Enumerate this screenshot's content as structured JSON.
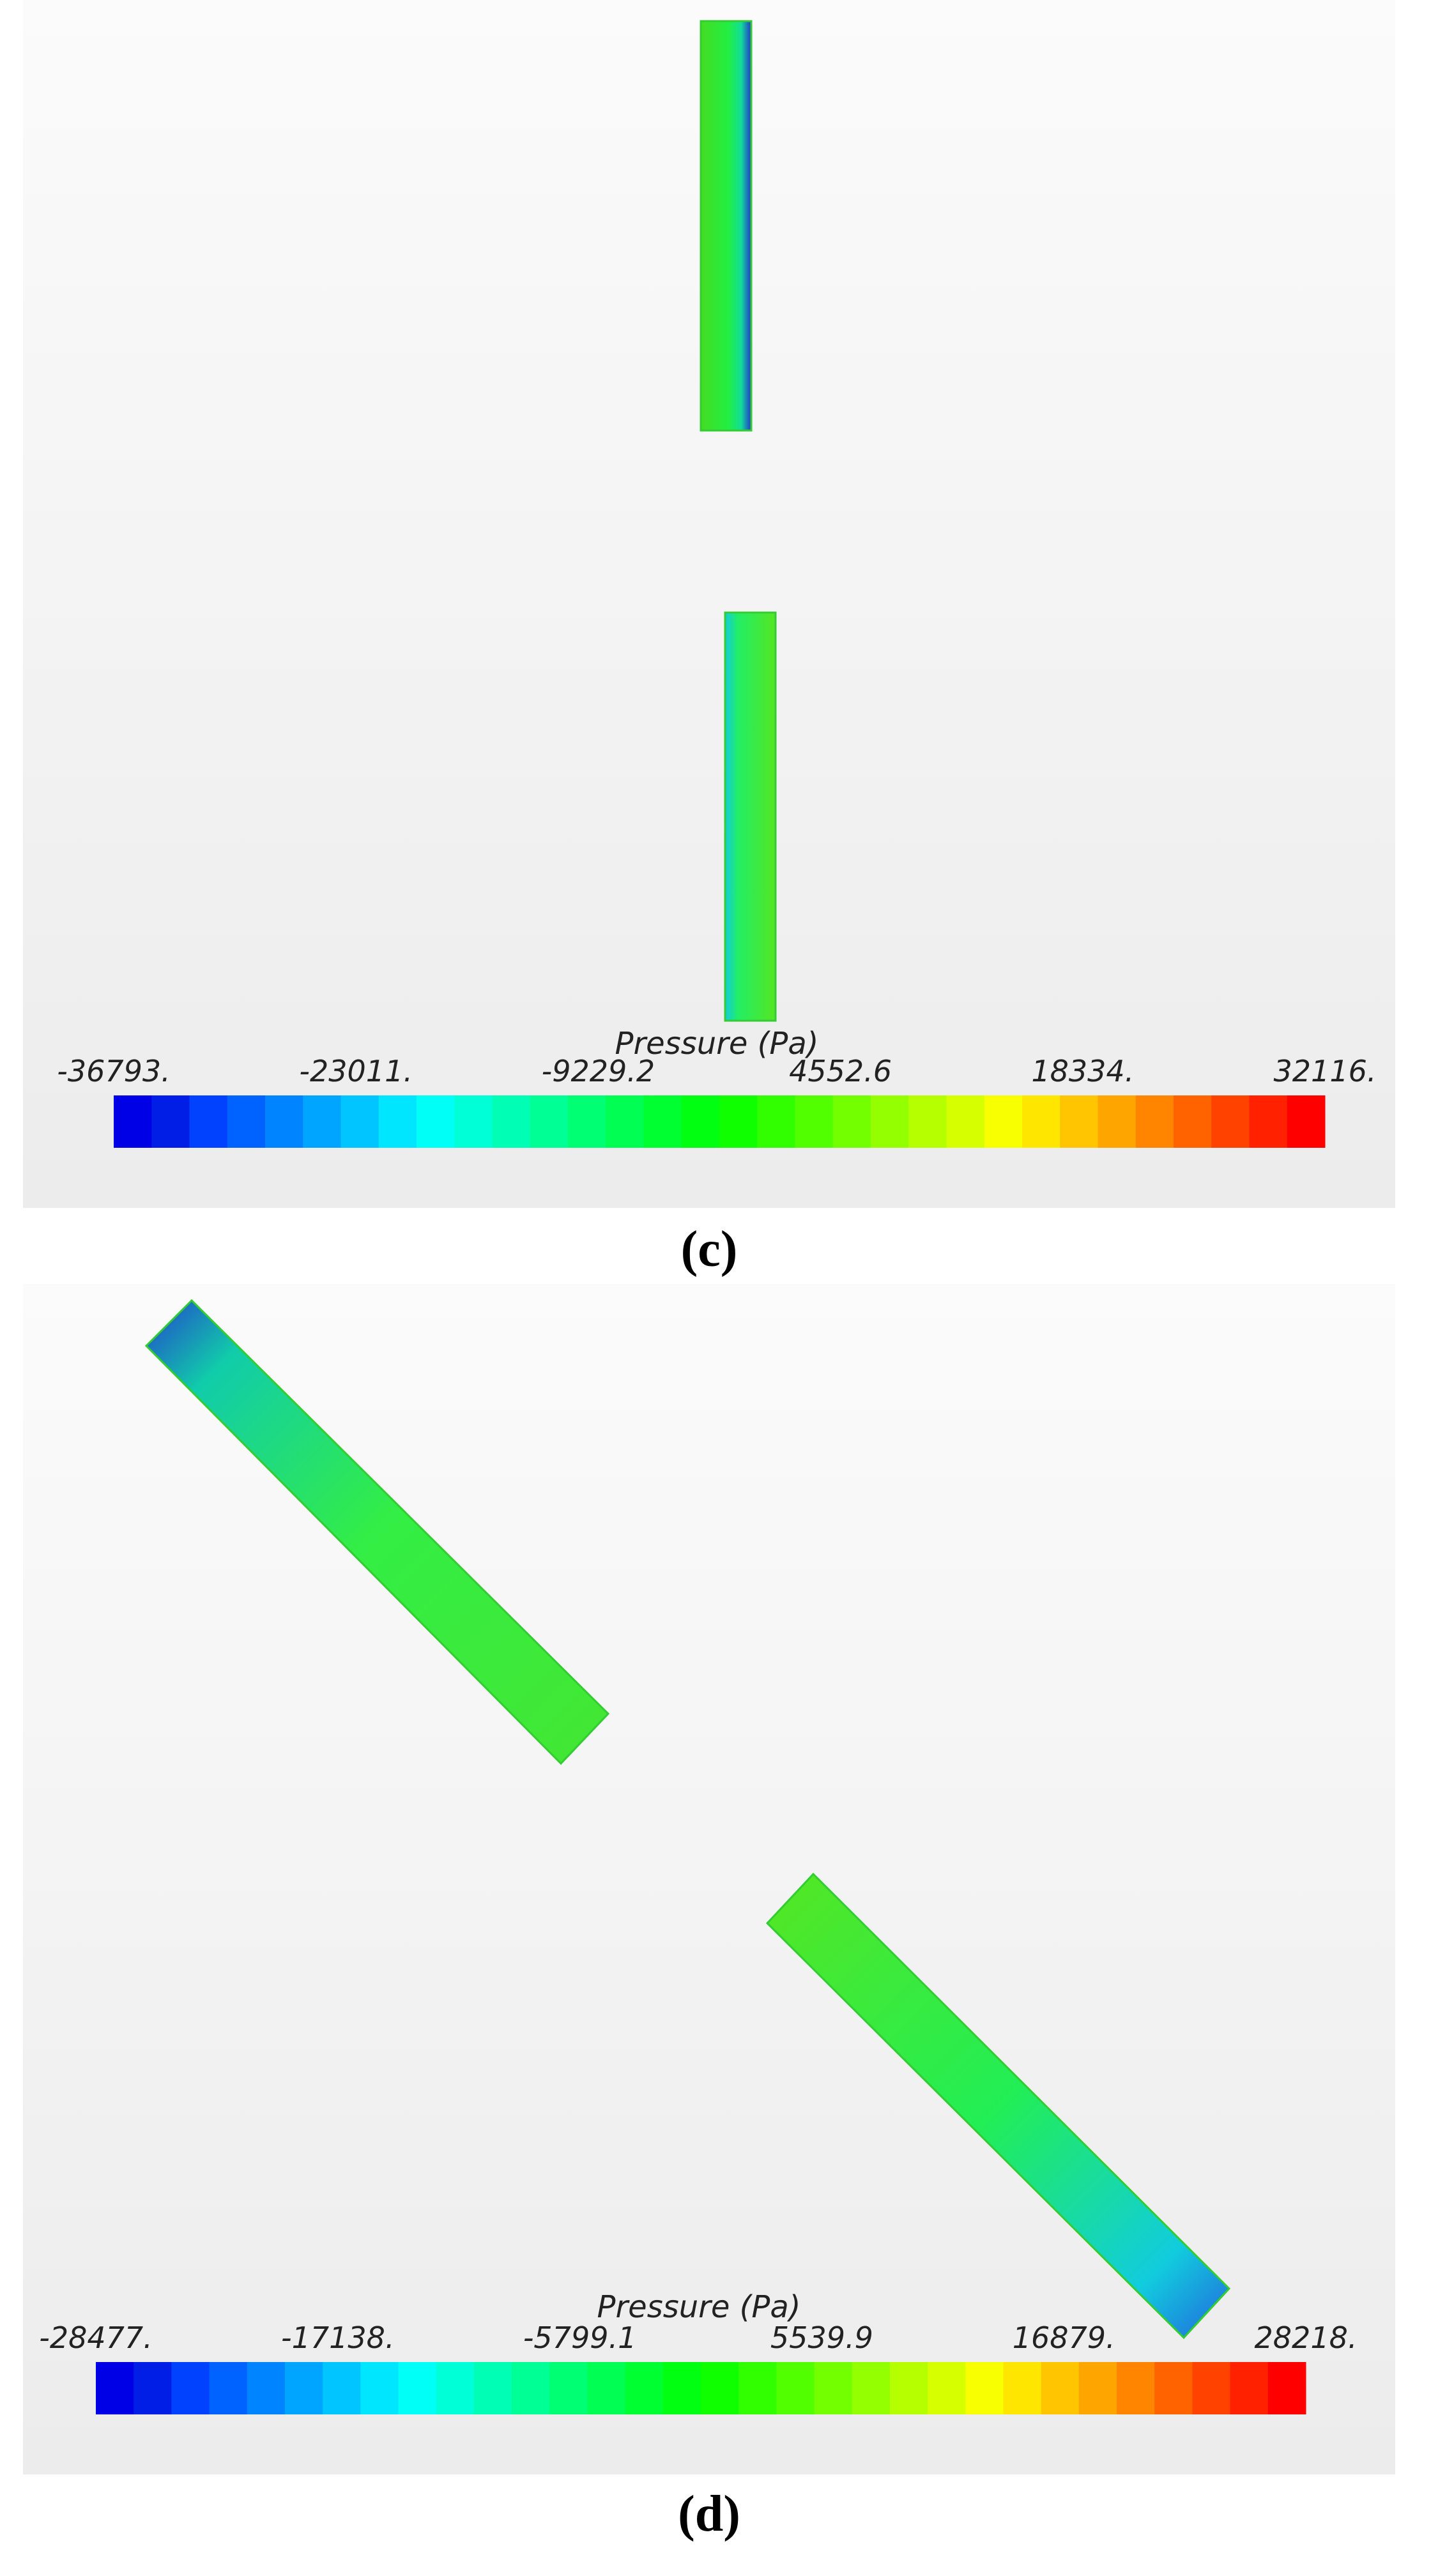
{
  "panels": [
    {
      "label": "(c)",
      "colorbar": {
        "title": "Pressure (Pa)",
        "ticks": [
          "-36793.",
          "-23011.",
          "-9229.2",
          "4552.6",
          "18334.",
          "32116."
        ]
      }
    },
    {
      "label": "(d)",
      "colorbar": {
        "title": "Pressure (Pa)",
        "ticks": [
          "-28477.",
          "-17138.",
          "-5799.1",
          "5539.9",
          "16879.",
          "28218."
        ]
      }
    }
  ]
}
